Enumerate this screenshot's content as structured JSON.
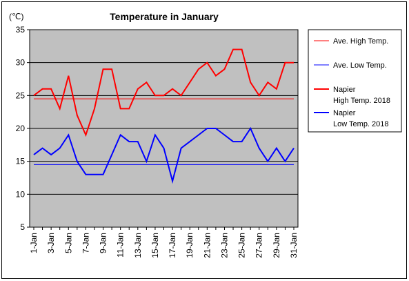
{
  "chart_data": {
    "type": "line",
    "title": "Temperature in January",
    "unit_label": "(℃)",
    "ylim": [
      5,
      35
    ],
    "yticks": [
      5,
      10,
      15,
      20,
      25,
      30,
      35
    ],
    "grid": true,
    "legend_position": "right",
    "x_tick_labels": [
      "1-Jan",
      "3-Jan",
      "5-Jan",
      "7-Jan",
      "9-Jan",
      "11-Jan",
      "13-Jan",
      "15-Jan",
      "17-Jan",
      "19-Jan",
      "21-Jan",
      "23-Jan",
      "25-Jan",
      "27-Jan",
      "29-Jan",
      "31-Jan"
    ],
    "x_days": [
      1,
      2,
      3,
      4,
      5,
      6,
      7,
      8,
      9,
      10,
      11,
      12,
      13,
      14,
      15,
      16,
      17,
      18,
      19,
      20,
      21,
      22,
      23,
      24,
      25,
      26,
      27,
      28,
      29,
      30,
      31
    ],
    "series": [
      {
        "name": "Ave. High Temp.",
        "color": "#ff0000",
        "width": 1,
        "values": [
          24.5,
          24.5,
          24.5,
          24.5,
          24.5,
          24.5,
          24.5,
          24.5,
          24.5,
          24.5,
          24.5,
          24.5,
          24.5,
          24.5,
          24.5,
          24.5,
          24.5,
          24.5,
          24.5,
          24.5,
          24.5,
          24.5,
          24.5,
          24.5,
          24.5,
          24.5,
          24.5,
          24.5,
          24.5,
          24.5,
          24.5
        ]
      },
      {
        "name": "Ave. Low Temp.",
        "color": "#0000ff",
        "width": 1,
        "values": [
          14.5,
          14.5,
          14.5,
          14.5,
          14.5,
          14.5,
          14.5,
          14.5,
          14.5,
          14.5,
          14.5,
          14.5,
          14.5,
          14.5,
          14.5,
          14.5,
          14.5,
          14.5,
          14.5,
          14.5,
          14.5,
          14.5,
          14.5,
          14.5,
          14.5,
          14.5,
          14.5,
          14.5,
          14.5,
          14.5,
          14.5
        ]
      },
      {
        "name_line1": "Napier",
        "name_line2": "High Temp. 2018",
        "color": "#ff0000",
        "width": 2,
        "values": [
          25,
          26,
          26,
          23,
          28,
          22,
          19,
          23,
          29,
          29,
          23,
          23,
          26,
          27,
          25,
          25,
          26,
          25,
          27,
          29,
          30,
          28,
          29,
          32,
          32,
          27,
          25,
          27,
          26,
          30,
          30
        ]
      },
      {
        "name_line1": "Napier",
        "name_line2": "Low Temp. 2018",
        "color": "#0000ff",
        "width": 2,
        "values": [
          16,
          17,
          16,
          17,
          19,
          15,
          13,
          13,
          13,
          16,
          19,
          18,
          18,
          15,
          19,
          17,
          12,
          17,
          18,
          19,
          20,
          20,
          19,
          18,
          18,
          20,
          17,
          15,
          17,
          15,
          17
        ]
      }
    ]
  }
}
